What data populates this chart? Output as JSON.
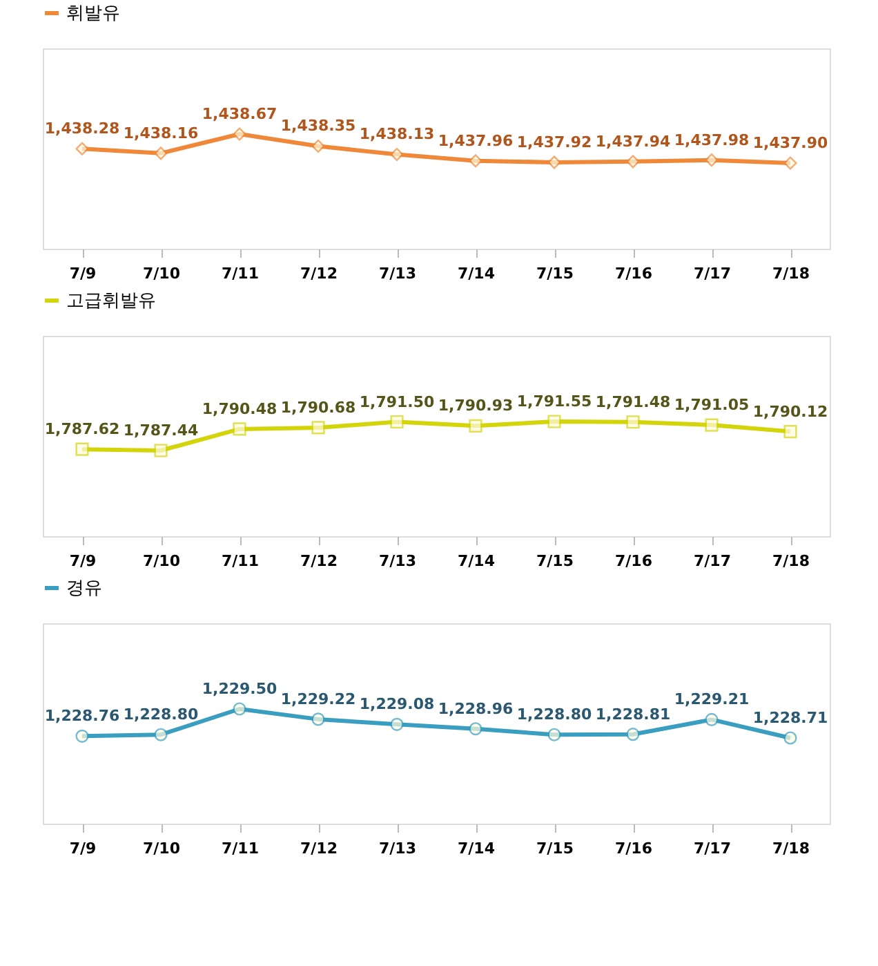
{
  "chart_data": [
    {
      "type": "line",
      "categories": [
        "7/9",
        "7/10",
        "7/11",
        "7/12",
        "7/13",
        "7/14",
        "7/15",
        "7/16",
        "7/17",
        "7/18"
      ],
      "series": [
        {
          "name": "휘발유",
          "color": "#f0883a",
          "values": [
            1438.28,
            1438.16,
            1438.67,
            1438.35,
            1438.13,
            1437.96,
            1437.92,
            1437.94,
            1437.98,
            1437.9
          ],
          "value_labels": [
            "1,438.28",
            "1,438.16",
            "1,438.67",
            "1,438.35",
            "1,438.13",
            "1,437.96",
            "1,437.92",
            "1,437.94",
            "1,437.98",
            "1,437.90"
          ]
        }
      ],
      "tick_labels": "x",
      "marker": "diamond",
      "legend": "top"
    },
    {
      "type": "line",
      "categories": [
        "7/9",
        "7/10",
        "7/11",
        "7/12",
        "7/13",
        "7/14",
        "7/15",
        "7/16",
        "7/17",
        "7/18"
      ],
      "series": [
        {
          "name": "고급휘발유",
          "color": "#d4d40a",
          "values": [
            1787.62,
            1787.44,
            1790.48,
            1790.68,
            1791.5,
            1790.93,
            1791.55,
            1791.48,
            1791.05,
            1790.12
          ],
          "value_labels": [
            "1,787.62",
            "1,787.44",
            "1,790.48",
            "1,790.68",
            "1,791.50",
            "1,790.93",
            "1,791.55",
            "1,791.48",
            "1,791.05",
            "1,790.12"
          ]
        }
      ],
      "tick_labels": "x",
      "marker": "square",
      "legend": "top"
    },
    {
      "type": "line",
      "categories": [
        "7/9",
        "7/10",
        "7/11",
        "7/12",
        "7/13",
        "7/14",
        "7/15",
        "7/16",
        "7/17",
        "7/18"
      ],
      "series": [
        {
          "name": "경유",
          "color": "#3a9ec0",
          "values": [
            1228.76,
            1228.8,
            1229.5,
            1229.22,
            1229.08,
            1228.96,
            1228.8,
            1228.81,
            1229.21,
            1228.71
          ],
          "value_labels": [
            "1,228.76",
            "1,228.80",
            "1,229.50",
            "1,229.22",
            "1,229.08",
            "1,228.96",
            "1,228.80",
            "1,228.81",
            "1,229.21",
            "1,228.71"
          ]
        }
      ],
      "tick_labels": "x",
      "marker": "circle",
      "legend": "top"
    }
  ]
}
